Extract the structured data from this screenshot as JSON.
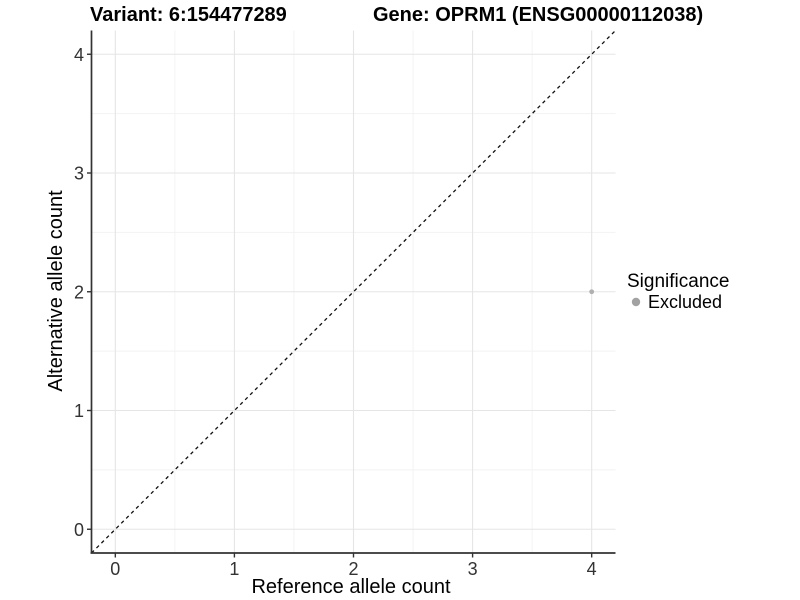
{
  "chart_data": {
    "type": "scatter",
    "title_left": "Variant: 6:154477289",
    "title_right": "Gene: OPRM1 (ENSG00000112038)",
    "xlabel": "Reference allele count",
    "ylabel": "Alternative allele count",
    "xlim": [
      -0.2,
      4.2
    ],
    "ylim": [
      -0.2,
      4.2
    ],
    "xticks": [
      0,
      1,
      2,
      3,
      4
    ],
    "yticks": [
      0,
      1,
      2,
      3,
      4
    ],
    "x_minor_ticks": [
      0.5,
      1.5,
      2.5,
      3.5
    ],
    "y_minor_ticks": [
      0.5,
      1.5,
      2.5,
      3.5
    ],
    "grid": "major+minor",
    "identity_line": {
      "type": "y=x",
      "style": "dashed"
    },
    "series": [
      {
        "name": "Excluded",
        "points": [
          {
            "x": 4,
            "y": 2
          }
        ]
      }
    ],
    "legend": {
      "title": "Significance",
      "position": "right",
      "entries": [
        {
          "label": "Excluded",
          "color": "#a2a2a2"
        }
      ]
    },
    "colors": {
      "background": "#ffffff",
      "grid_major": "#e5e5e5",
      "grid_minor": "#f2f2f2",
      "axis_line": "#333333",
      "tick_mark": "#333333",
      "tick_text": "#333333",
      "identity_line": "#111111",
      "point": "#b0b0b0"
    }
  }
}
